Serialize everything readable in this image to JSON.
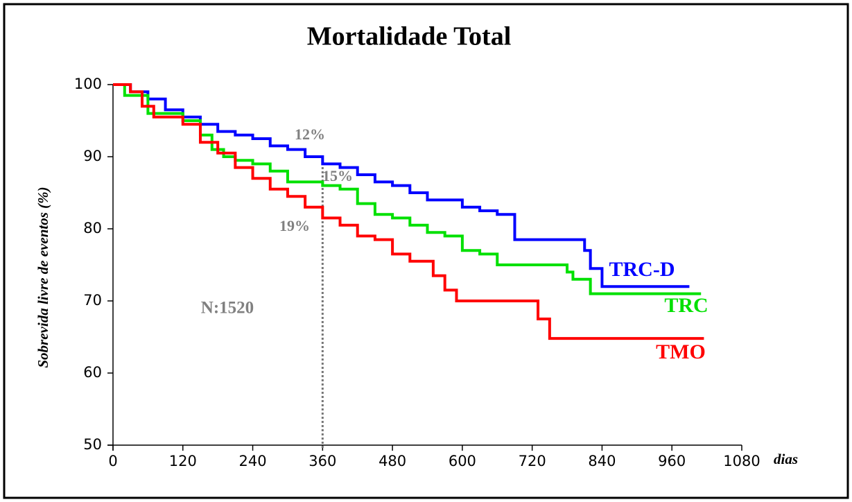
{
  "chart_data": {
    "type": "line",
    "step": true,
    "title": "Mortalidade Total",
    "ylabel": "Sobrevida livre de eventos (%)",
    "xlabel": "dias",
    "xlim": [
      0,
      1080
    ],
    "ylim": [
      50,
      100
    ],
    "xticks": [
      0,
      120,
      240,
      360,
      480,
      600,
      720,
      840,
      960,
      1080
    ],
    "yticks": [
      50,
      60,
      70,
      80,
      90,
      100
    ],
    "reference_x": 360,
    "annotations": [
      "12%",
      "15%",
      "19%",
      "N:1520"
    ],
    "series": [
      {
        "name": "TRC-D",
        "color": "#0000ff",
        "x": [
          0,
          30,
          60,
          90,
          120,
          150,
          180,
          210,
          240,
          270,
          300,
          330,
          360,
          390,
          420,
          450,
          480,
          510,
          540,
          600,
          630,
          660,
          690,
          810,
          820,
          840,
          990
        ],
        "values": [
          100,
          99,
          98,
          96.5,
          95.5,
          94.5,
          93.5,
          93,
          92.5,
          91.5,
          91,
          90,
          89,
          88.5,
          87.5,
          86.5,
          86,
          85,
          84,
          83,
          82.5,
          82,
          78.5,
          77,
          74.5,
          72,
          72
        ]
      },
      {
        "name": "TRC",
        "color": "#00e000",
        "x": [
          0,
          20,
          60,
          120,
          150,
          170,
          190,
          210,
          240,
          270,
          300,
          360,
          390,
          420,
          450,
          480,
          510,
          540,
          570,
          600,
          630,
          660,
          780,
          790,
          820,
          1010
        ],
        "values": [
          100,
          98.5,
          96,
          95,
          93,
          91,
          90,
          89.5,
          89,
          88,
          86.5,
          86,
          85.5,
          83.5,
          82,
          81.5,
          80.5,
          79.5,
          79,
          77,
          76.5,
          75,
          74,
          73,
          71,
          71
        ]
      },
      {
        "name": "TMO",
        "color": "#ff0000",
        "x": [
          0,
          30,
          50,
          70,
          120,
          150,
          180,
          210,
          240,
          270,
          300,
          330,
          360,
          390,
          420,
          450,
          480,
          510,
          550,
          570,
          590,
          730,
          750,
          1015
        ],
        "values": [
          100,
          99,
          97,
          95.5,
          94.5,
          92,
          90.5,
          88.5,
          87,
          85.5,
          84.5,
          83,
          81.5,
          80.5,
          79,
          78.5,
          76.5,
          75.5,
          73.5,
          71.5,
          70,
          67.5,
          64.8,
          64.8
        ]
      }
    ]
  }
}
